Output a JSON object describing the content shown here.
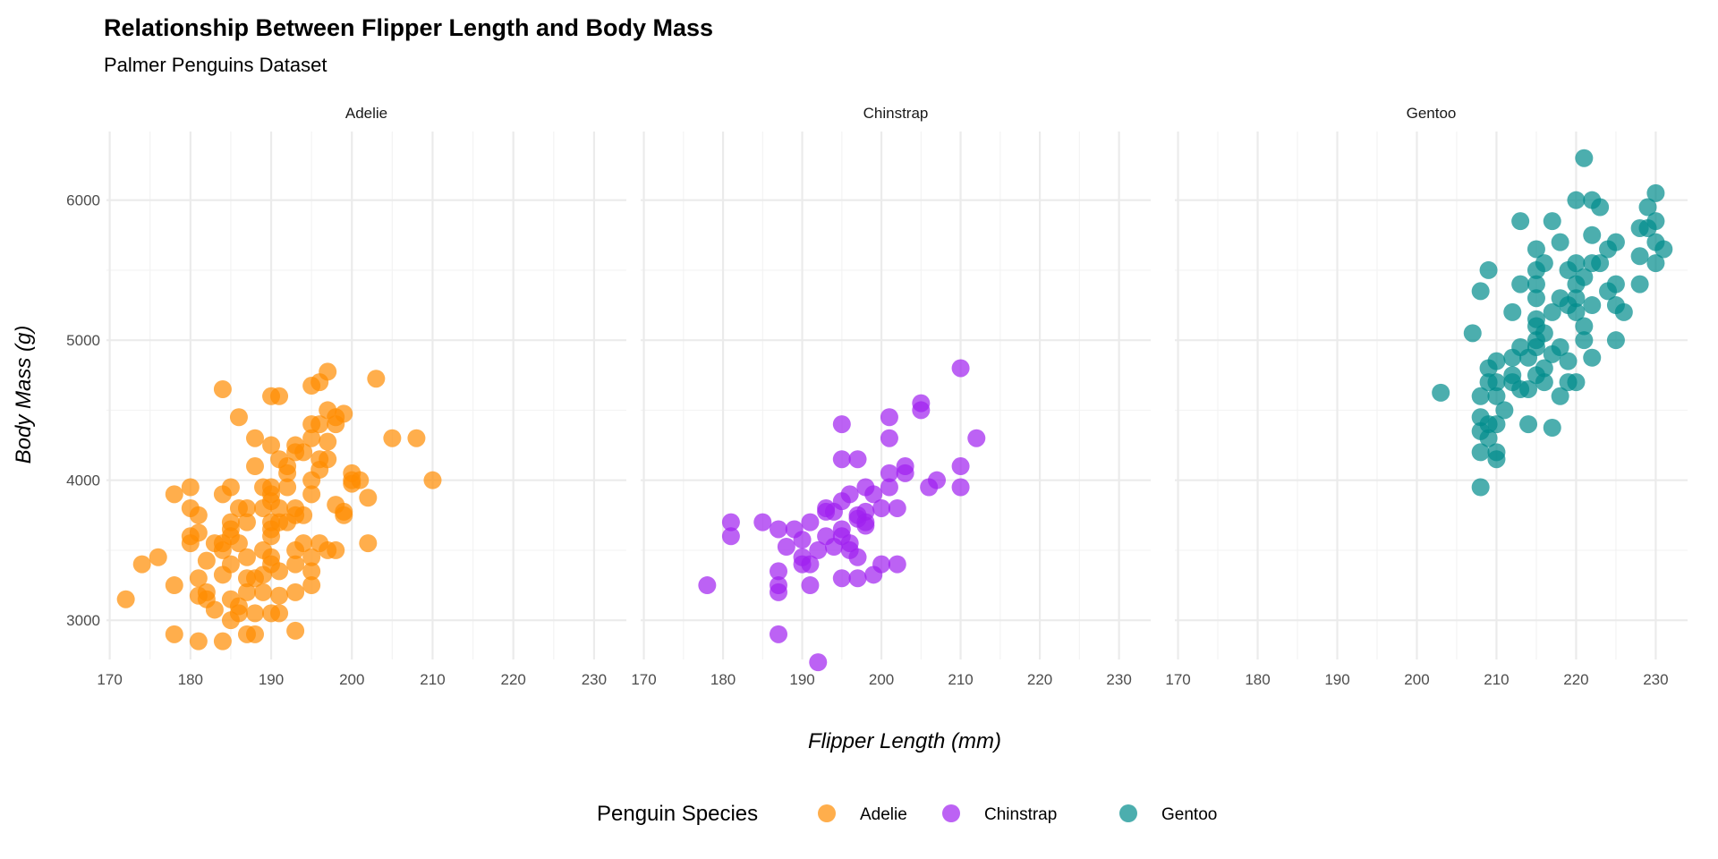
{
  "chart_data": {
    "type": "scatter",
    "title": "Relationship Between Flipper Length and Body Mass",
    "subtitle": "Palmer Penguins Dataset",
    "xlabel": "Flipper Length (mm)",
    "ylabel": "Body Mass (g)",
    "xlim": [
      169.6,
      234
    ],
    "ylim": [
      2720,
      6490
    ],
    "x_ticks": [
      170,
      180,
      190,
      200,
      210,
      220,
      230
    ],
    "y_ticks": [
      3000,
      4000,
      5000,
      6000
    ],
    "grid": true,
    "legend": {
      "title": "Penguin Species",
      "position": "bottom"
    },
    "panels": [
      {
        "name": "Adelie",
        "color": "#FF8C00",
        "points": [
          [
            172,
            3150
          ],
          [
            174,
            3400
          ],
          [
            176,
            3450
          ],
          [
            178,
            3900
          ],
          [
            178,
            3250
          ],
          [
            178,
            2900
          ],
          [
            180,
            3950
          ],
          [
            180,
            3800
          ],
          [
            180,
            3600
          ],
          [
            180,
            3550
          ],
          [
            181,
            3750
          ],
          [
            181,
            3625
          ],
          [
            181,
            3300
          ],
          [
            181,
            3175
          ],
          [
            181,
            2850
          ],
          [
            182,
            3200
          ],
          [
            182,
            3150
          ],
          [
            182,
            3425
          ],
          [
            183,
            3550
          ],
          [
            183,
            3075
          ],
          [
            184,
            4650
          ],
          [
            184,
            3900
          ],
          [
            184,
            3550
          ],
          [
            184,
            3500
          ],
          [
            184,
            3325
          ],
          [
            184,
            2850
          ],
          [
            185,
            3950
          ],
          [
            185,
            3700
          ],
          [
            185,
            3650
          ],
          [
            185,
            3600
          ],
          [
            185,
            3400
          ],
          [
            185,
            3150
          ],
          [
            185,
            3000
          ],
          [
            186,
            4450
          ],
          [
            186,
            3800
          ],
          [
            186,
            3550
          ],
          [
            186,
            3100
          ],
          [
            186,
            3050
          ],
          [
            187,
            3800
          ],
          [
            187,
            3700
          ],
          [
            187,
            3450
          ],
          [
            187,
            3300
          ],
          [
            187,
            3200
          ],
          [
            187,
            2900
          ],
          [
            188,
            4300
          ],
          [
            188,
            4100
          ],
          [
            188,
            3300
          ],
          [
            188,
            3050
          ],
          [
            188,
            2900
          ],
          [
            189,
            3950
          ],
          [
            189,
            3800
          ],
          [
            189,
            3500
          ],
          [
            189,
            3325
          ],
          [
            189,
            3200
          ],
          [
            190,
            4600
          ],
          [
            190,
            4250
          ],
          [
            190,
            3950
          ],
          [
            190,
            3900
          ],
          [
            190,
            3850
          ],
          [
            190,
            3700
          ],
          [
            190,
            3650
          ],
          [
            190,
            3600
          ],
          [
            190,
            3450
          ],
          [
            190,
            3400
          ],
          [
            190,
            3050
          ],
          [
            191,
            4600
          ],
          [
            191,
            4150
          ],
          [
            191,
            3800
          ],
          [
            191,
            3700
          ],
          [
            191,
            3350
          ],
          [
            191,
            3175
          ],
          [
            191,
            3050
          ],
          [
            192,
            4100
          ],
          [
            192,
            4050
          ],
          [
            192,
            3950
          ],
          [
            192,
            3700
          ],
          [
            193,
            4250
          ],
          [
            193,
            4200
          ],
          [
            193,
            3800
          ],
          [
            193,
            3750
          ],
          [
            193,
            3500
          ],
          [
            193,
            3400
          ],
          [
            193,
            3200
          ],
          [
            193,
            2925
          ],
          [
            194,
            4200
          ],
          [
            194,
            3750
          ],
          [
            194,
            3550
          ],
          [
            195,
            4400
          ],
          [
            195,
            4300
          ],
          [
            195,
            4000
          ],
          [
            195,
            3900
          ],
          [
            195,
            3450
          ],
          [
            195,
            3350
          ],
          [
            195,
            3250
          ],
          [
            195,
            4675
          ],
          [
            196,
            4700
          ],
          [
            196,
            4400
          ],
          [
            196,
            4150
          ],
          [
            196,
            4075
          ],
          [
            196,
            3550
          ],
          [
            197,
            4775
          ],
          [
            197,
            4500
          ],
          [
            197,
            4275
          ],
          [
            197,
            4150
          ],
          [
            197,
            3500
          ],
          [
            198,
            4450
          ],
          [
            198,
            4400
          ],
          [
            198,
            3825
          ],
          [
            198,
            3500
          ],
          [
            199,
            4475
          ],
          [
            199,
            3775
          ],
          [
            199,
            3750
          ],
          [
            200,
            4050
          ],
          [
            200,
            4000
          ],
          [
            200,
            3975
          ],
          [
            201,
            4000
          ],
          [
            202,
            3875
          ],
          [
            202,
            3550
          ],
          [
            203,
            4725
          ],
          [
            205,
            4300
          ],
          [
            208,
            4300
          ],
          [
            210,
            4000
          ]
        ]
      },
      {
        "name": "Chinstrap",
        "color": "#A020F0",
        "points": [
          [
            178,
            3250
          ],
          [
            181,
            3700
          ],
          [
            181,
            3600
          ],
          [
            185,
            3700
          ],
          [
            187,
            3650
          ],
          [
            187,
            3350
          ],
          [
            187,
            3250
          ],
          [
            187,
            3200
          ],
          [
            187,
            2900
          ],
          [
            188,
            3525
          ],
          [
            189,
            3650
          ],
          [
            190,
            3575
          ],
          [
            190,
            3450
          ],
          [
            190,
            3400
          ],
          [
            191,
            3700
          ],
          [
            191,
            3400
          ],
          [
            191,
            3250
          ],
          [
            192,
            3500
          ],
          [
            192,
            2700
          ],
          [
            193,
            3800
          ],
          [
            193,
            3775
          ],
          [
            193,
            3600
          ],
          [
            194,
            3775
          ],
          [
            194,
            3525
          ],
          [
            195,
            4400
          ],
          [
            195,
            4150
          ],
          [
            195,
            3850
          ],
          [
            195,
            3650
          ],
          [
            195,
            3600
          ],
          [
            195,
            3300
          ],
          [
            196,
            3900
          ],
          [
            196,
            3550
          ],
          [
            196,
            3500
          ],
          [
            197,
            4150
          ],
          [
            197,
            3750
          ],
          [
            197,
            3725
          ],
          [
            197,
            3450
          ],
          [
            197,
            3300
          ],
          [
            198,
            3950
          ],
          [
            198,
            3775
          ],
          [
            198,
            3700
          ],
          [
            198,
            3675
          ],
          [
            199,
            3900
          ],
          [
            199,
            3325
          ],
          [
            200,
            3800
          ],
          [
            200,
            3400
          ],
          [
            201,
            4450
          ],
          [
            201,
            4300
          ],
          [
            201,
            4050
          ],
          [
            201,
            3950
          ],
          [
            202,
            3800
          ],
          [
            202,
            3400
          ],
          [
            203,
            4100
          ],
          [
            203,
            4050
          ],
          [
            205,
            4550
          ],
          [
            205,
            4500
          ],
          [
            206,
            3950
          ],
          [
            207,
            4000
          ],
          [
            210,
            4800
          ],
          [
            210,
            4100
          ],
          [
            210,
            3950
          ],
          [
            212,
            4300
          ]
        ]
      },
      {
        "name": "Gentoo",
        "color": "#008B8B",
        "points": [
          [
            203,
            4625
          ],
          [
            207,
            5050
          ],
          [
            208,
            5350
          ],
          [
            208,
            4600
          ],
          [
            208,
            4450
          ],
          [
            208,
            4350
          ],
          [
            208,
            4200
          ],
          [
            208,
            3950
          ],
          [
            209,
            5500
          ],
          [
            209,
            4800
          ],
          [
            209,
            4700
          ],
          [
            209,
            4400
          ],
          [
            209,
            4300
          ],
          [
            210,
            4850
          ],
          [
            210,
            4700
          ],
          [
            210,
            4600
          ],
          [
            210,
            4400
          ],
          [
            210,
            4200
          ],
          [
            210,
            4150
          ],
          [
            211,
            4500
          ],
          [
            212,
            5200
          ],
          [
            212,
            4750
          ],
          [
            212,
            4700
          ],
          [
            212,
            4875
          ],
          [
            213,
            5850
          ],
          [
            213,
            5400
          ],
          [
            213,
            4950
          ],
          [
            213,
            4650
          ],
          [
            214,
            4875
          ],
          [
            214,
            4650
          ],
          [
            214,
            4400
          ],
          [
            215,
            5650
          ],
          [
            215,
            5500
          ],
          [
            215,
            5400
          ],
          [
            215,
            5300
          ],
          [
            215,
            5150
          ],
          [
            215,
            5100
          ],
          [
            215,
            5000
          ],
          [
            215,
            4950
          ],
          [
            215,
            4750
          ],
          [
            216,
            5550
          ],
          [
            216,
            5050
          ],
          [
            216,
            4800
          ],
          [
            216,
            4700
          ],
          [
            217,
            5850
          ],
          [
            217,
            5200
          ],
          [
            217,
            4900
          ],
          [
            217,
            4375
          ],
          [
            218,
            5700
          ],
          [
            218,
            5300
          ],
          [
            218,
            4950
          ],
          [
            218,
            4600
          ],
          [
            219,
            5500
          ],
          [
            219,
            5250
          ],
          [
            219,
            4850
          ],
          [
            219,
            4700
          ],
          [
            220,
            6000
          ],
          [
            220,
            5550
          ],
          [
            220,
            5400
          ],
          [
            220,
            5300
          ],
          [
            220,
            5200
          ],
          [
            220,
            4700
          ],
          [
            221,
            6300
          ],
          [
            221,
            5450
          ],
          [
            221,
            5100
          ],
          [
            221,
            5000
          ],
          [
            222,
            6000
          ],
          [
            222,
            5750
          ],
          [
            222,
            5550
          ],
          [
            222,
            5250
          ],
          [
            222,
            4875
          ],
          [
            223,
            5950
          ],
          [
            223,
            5550
          ],
          [
            224,
            5650
          ],
          [
            224,
            5350
          ],
          [
            225,
            5700
          ],
          [
            225,
            5400
          ],
          [
            225,
            5250
          ],
          [
            225,
            5000
          ],
          [
            226,
            5200
          ],
          [
            228,
            5800
          ],
          [
            228,
            5600
          ],
          [
            228,
            5400
          ],
          [
            229,
            5950
          ],
          [
            229,
            5800
          ],
          [
            230,
            6050
          ],
          [
            230,
            5850
          ],
          [
            230,
            5700
          ],
          [
            230,
            5550
          ],
          [
            231,
            5650
          ]
        ]
      }
    ]
  }
}
